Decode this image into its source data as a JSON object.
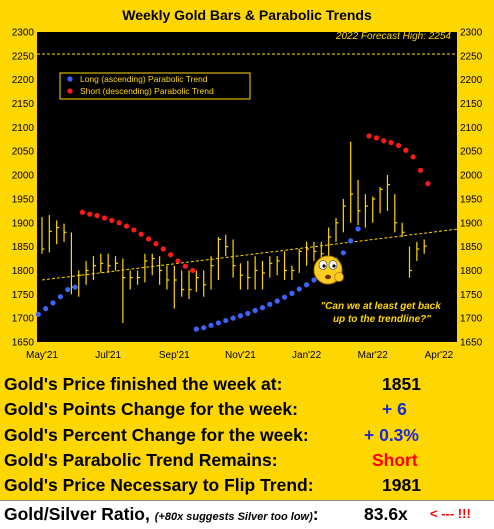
{
  "chart_data": {
    "type": "line",
    "title": "Weekly Gold Bars & Parabolic Trends",
    "ylim": [
      1650,
      2300
    ],
    "yticks": [
      1650,
      1700,
      1750,
      1800,
      1850,
      1900,
      1950,
      2000,
      2050,
      2100,
      2150,
      2200,
      2250,
      2300
    ],
    "xtick_labels": [
      "May'21",
      "Jul'21",
      "Sep'21",
      "Nov'21",
      "Jan'22",
      "Mar'22",
      "Apr'22"
    ],
    "xtick_positions": [
      0,
      9,
      18,
      27,
      36,
      45,
      54
    ],
    "forecast": {
      "label": "2022 Forecast High: 2254",
      "value": 2254
    },
    "trendline": {
      "x": [
        0,
        62
      ],
      "y": [
        1780,
        1897
      ]
    },
    "legend": [
      {
        "name": "Long (ascending) Parabolic Trend",
        "color": "#3c64ff"
      },
      {
        "name": "Short (descending) Parabolic Trend",
        "color": "#ff1a1a"
      }
    ],
    "annotation": "\"Can we at least get back up to the trendline?\"",
    "bars": [
      {
        "x": 0,
        "h": 1912,
        "l": 1835,
        "c": 1845
      },
      {
        "x": 1,
        "h": 1916,
        "l": 1838,
        "c": 1882
      },
      {
        "x": 2,
        "h": 1905,
        "l": 1855,
        "c": 1890
      },
      {
        "x": 3,
        "h": 1898,
        "l": 1860,
        "c": 1880
      },
      {
        "x": 4,
        "h": 1880,
        "l": 1750,
        "c": 1765
      },
      {
        "x": 5,
        "h": 1800,
        "l": 1745,
        "c": 1790
      },
      {
        "x": 6,
        "h": 1820,
        "l": 1770,
        "c": 1800
      },
      {
        "x": 7,
        "h": 1830,
        "l": 1780,
        "c": 1810
      },
      {
        "x": 8,
        "h": 1835,
        "l": 1795,
        "c": 1815
      },
      {
        "x": 9,
        "h": 1835,
        "l": 1795,
        "c": 1810
      },
      {
        "x": 10,
        "h": 1830,
        "l": 1800,
        "c": 1815
      },
      {
        "x": 11,
        "h": 1825,
        "l": 1690,
        "c": 1785
      },
      {
        "x": 12,
        "h": 1800,
        "l": 1760,
        "c": 1785
      },
      {
        "x": 13,
        "h": 1800,
        "l": 1770,
        "c": 1785
      },
      {
        "x": 14,
        "h": 1835,
        "l": 1775,
        "c": 1820
      },
      {
        "x": 15,
        "h": 1835,
        "l": 1790,
        "c": 1825
      },
      {
        "x": 16,
        "h": 1830,
        "l": 1770,
        "c": 1800
      },
      {
        "x": 17,
        "h": 1810,
        "l": 1760,
        "c": 1780
      },
      {
        "x": 18,
        "h": 1810,
        "l": 1720,
        "c": 1780
      },
      {
        "x": 19,
        "h": 1800,
        "l": 1745,
        "c": 1760
      },
      {
        "x": 20,
        "h": 1800,
        "l": 1740,
        "c": 1760
      },
      {
        "x": 21,
        "h": 1800,
        "l": 1755,
        "c": 1785
      },
      {
        "x": 22,
        "h": 1800,
        "l": 1745,
        "c": 1770
      },
      {
        "x": 23,
        "h": 1830,
        "l": 1760,
        "c": 1810
      },
      {
        "x": 24,
        "h": 1870,
        "l": 1780,
        "c": 1865
      },
      {
        "x": 25,
        "h": 1875,
        "l": 1830,
        "c": 1850
      },
      {
        "x": 26,
        "h": 1865,
        "l": 1785,
        "c": 1810
      },
      {
        "x": 27,
        "h": 1815,
        "l": 1760,
        "c": 1790
      },
      {
        "x": 28,
        "h": 1820,
        "l": 1760,
        "c": 1785
      },
      {
        "x": 29,
        "h": 1830,
        "l": 1760,
        "c": 1800
      },
      {
        "x": 30,
        "h": 1820,
        "l": 1760,
        "c": 1795
      },
      {
        "x": 31,
        "h": 1830,
        "l": 1785,
        "c": 1815
      },
      {
        "x": 32,
        "h": 1830,
        "l": 1790,
        "c": 1820
      },
      {
        "x": 33,
        "h": 1840,
        "l": 1780,
        "c": 1800
      },
      {
        "x": 34,
        "h": 1810,
        "l": 1780,
        "c": 1800
      },
      {
        "x": 35,
        "h": 1845,
        "l": 1795,
        "c": 1840
      },
      {
        "x": 36,
        "h": 1860,
        "l": 1810,
        "c": 1845
      },
      {
        "x": 37,
        "h": 1860,
        "l": 1820,
        "c": 1840
      },
      {
        "x": 38,
        "h": 1860,
        "l": 1810,
        "c": 1835
      },
      {
        "x": 39,
        "h": 1890,
        "l": 1790,
        "c": 1870
      },
      {
        "x": 40,
        "h": 1910,
        "l": 1860,
        "c": 1900
      },
      {
        "x": 41,
        "h": 1950,
        "l": 1880,
        "c": 1935
      },
      {
        "x": 42,
        "h": 2070,
        "l": 1900,
        "c": 1960
      },
      {
        "x": 43,
        "h": 1990,
        "l": 1895,
        "c": 1925
      },
      {
        "x": 44,
        "h": 1960,
        "l": 1890,
        "c": 1935
      },
      {
        "x": 45,
        "h": 1955,
        "l": 1900,
        "c": 1950
      },
      {
        "x": 46,
        "h": 1975,
        "l": 1920,
        "c": 1970
      },
      {
        "x": 47,
        "h": 2000,
        "l": 1925,
        "c": 1980
      },
      {
        "x": 48,
        "h": 1960,
        "l": 1880,
        "c": 1900
      },
      {
        "x": 49,
        "h": 1900,
        "l": 1870,
        "c": 1880
      },
      {
        "x": 50,
        "h": 1850,
        "l": 1785,
        "c": 1800
      },
      {
        "x": 51,
        "h": 1860,
        "l": 1820,
        "c": 1845
      },
      {
        "x": 52,
        "h": 1865,
        "l": 1835,
        "c": 1851
      }
    ],
    "series": [
      {
        "name": "Long (ascending) Parabolic Trend",
        "color": "#3c64ff",
        "points": [
          [
            -0.5,
            1708
          ],
          [
            0.5,
            1720
          ],
          [
            1.5,
            1732
          ],
          [
            2.5,
            1745
          ],
          [
            3.5,
            1760
          ],
          [
            4.5,
            1765
          ]
        ]
      },
      {
        "name": "Short (descending) Parabolic Trend",
        "color": "#ff1a1a",
        "points": [
          [
            5.5,
            1922
          ],
          [
            6.5,
            1918
          ],
          [
            7.5,
            1915
          ],
          [
            8.5,
            1910
          ],
          [
            9.5,
            1905
          ],
          [
            10.5,
            1900
          ],
          [
            11.5,
            1893
          ],
          [
            12.5,
            1885
          ],
          [
            13.5,
            1876
          ],
          [
            14.5,
            1866
          ],
          [
            15.5,
            1856
          ],
          [
            16.5,
            1845
          ],
          [
            17.5,
            1833
          ],
          [
            18.5,
            1820
          ],
          [
            19.5,
            1809
          ],
          [
            20.5,
            1800
          ]
        ]
      },
      {
        "name": "Long (ascending) Parabolic Trend",
        "color": "#3c64ff",
        "points": [
          [
            21.0,
            1677
          ],
          [
            22.0,
            1680
          ],
          [
            23.0,
            1685
          ],
          [
            24.0,
            1690
          ],
          [
            25.0,
            1695
          ],
          [
            26.0,
            1700
          ],
          [
            27.0,
            1705
          ],
          [
            28.0,
            1710
          ],
          [
            29.0,
            1716
          ],
          [
            30.0,
            1722
          ],
          [
            31.0,
            1729
          ],
          [
            32.0,
            1736
          ],
          [
            33.0,
            1744
          ],
          [
            34.0,
            1752
          ],
          [
            35.0,
            1761
          ],
          [
            36.0,
            1770
          ],
          [
            37.0,
            1780
          ],
          [
            38.0,
            1791
          ],
          [
            39.0,
            1806
          ],
          [
            40.0,
            1822
          ],
          [
            41.0,
            1837
          ],
          [
            42.0,
            1862
          ],
          [
            43.0,
            1887
          ]
        ]
      },
      {
        "name": "Short (descending) Parabolic Trend",
        "color": "#ff1a1a",
        "points": [
          [
            44.5,
            2082
          ],
          [
            45.5,
            2078
          ],
          [
            46.5,
            2072
          ],
          [
            47.5,
            2068
          ],
          [
            48.5,
            2062
          ],
          [
            49.5,
            2052
          ],
          [
            50.5,
            2038
          ],
          [
            51.5,
            2010
          ],
          [
            52.5,
            1982
          ]
        ]
      }
    ]
  },
  "summary": [
    {
      "label": "Gold's Price finished the week at:",
      "value": "1851",
      "value_color": "#000000"
    },
    {
      "label": "Gold's Points Change for the week:",
      "value": "+ 6",
      "value_color": "#1a2ad4"
    },
    {
      "label": "Gold's Percent Change for the week:",
      "value": "+ 0.3%",
      "value_color": "#1a2ad4"
    },
    {
      "label": "Gold's Parabolic Trend Remains:",
      "value": "Short",
      "value_color": "#ff0000"
    },
    {
      "label": "Gold's Price Necessary to Flip Trend:",
      "value": "1981",
      "value_color": "#000000"
    }
  ],
  "ratio": {
    "label": "Gold/Silver Ratio,",
    "note": "(+80x suggests Silver too low)",
    "colon": ":",
    "value": "83.6x",
    "marker": "< --- !!!",
    "marker_color": "#ff0000"
  }
}
